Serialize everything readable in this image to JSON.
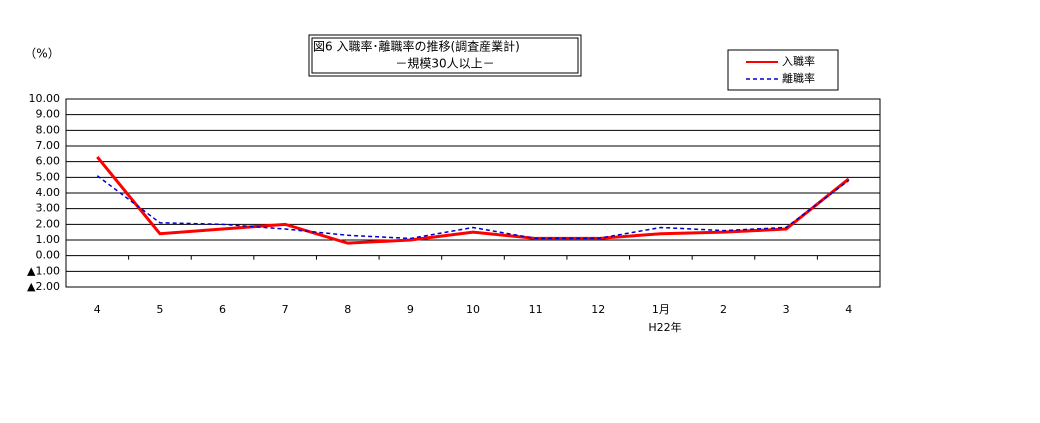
{
  "chart_data": {
    "type": "line",
    "title": "図6 入職率･離職率の推移(調査産業計)",
    "subtitle": "－規模30人以上－",
    "y_label": "（%）",
    "x_annotation": "H22年",
    "categories": [
      "4",
      "5",
      "6",
      "7",
      "8",
      "9",
      "10",
      "11",
      "12",
      "1月",
      "2",
      "3",
      "4"
    ],
    "series": [
      {
        "name": "入職率",
        "color": "#ff0000",
        "dashed": false,
        "values": [
          6.3,
          1.4,
          1.7,
          2.0,
          0.8,
          1.0,
          1.5,
          1.1,
          1.1,
          1.4,
          1.5,
          1.7,
          4.9
        ]
      },
      {
        "name": "離職率",
        "color": "#0000cc",
        "dashed": true,
        "values": [
          5.1,
          2.1,
          2.0,
          1.7,
          1.3,
          1.1,
          1.8,
          1.1,
          1.1,
          1.8,
          1.6,
          1.8,
          4.8
        ]
      }
    ],
    "ylim": [
      -2,
      10
    ],
    "yticks": [
      {
        "value": 10,
        "label": "10.00"
      },
      {
        "value": 9,
        "label": "9.00"
      },
      {
        "value": 8,
        "label": "8.00"
      },
      {
        "value": 7,
        "label": "7.00"
      },
      {
        "value": 6,
        "label": "6.00"
      },
      {
        "value": 5,
        "label": "5.00"
      },
      {
        "value": 4,
        "label": "4.00"
      },
      {
        "value": 3,
        "label": "3.00"
      },
      {
        "value": 2,
        "label": "2.00"
      },
      {
        "value": 1,
        "label": "1.00"
      },
      {
        "value": 0,
        "label": "0.00"
      },
      {
        "value": -1,
        "label": "▲1.00"
      },
      {
        "value": -2,
        "label": "▲2.00"
      }
    ],
    "grid": true
  }
}
